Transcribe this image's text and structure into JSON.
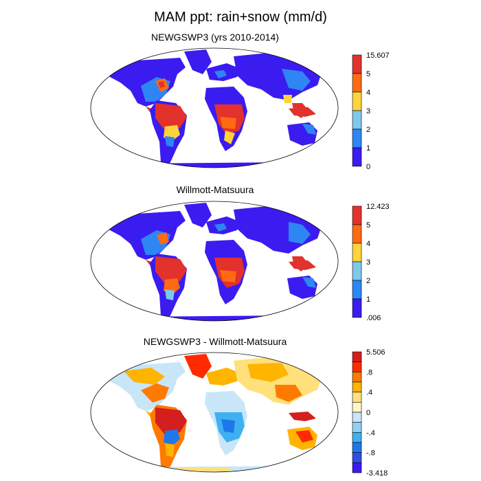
{
  "title": "MAM ppt: rain+snow (mm/d)",
  "panels": [
    {
      "title": "NEWGSWP3 (yrs 2010-2014)",
      "colorbar": {
        "labels": [
          "15.607",
          "5",
          "4",
          "3",
          "2",
          "1",
          "0"
        ],
        "colors": [
          "#e3312c",
          "#ff6a12",
          "#ffd43a",
          "#7ec8ec",
          "#2d86f3",
          "#3a1cf0"
        ]
      }
    },
    {
      "title": "Willmott-Matsuura",
      "colorbar": {
        "labels": [
          "12.423",
          "5",
          "4",
          "3",
          "2",
          "1",
          ".006"
        ],
        "colors": [
          "#e3312c",
          "#ff6a12",
          "#ffd43a",
          "#7ec8ec",
          "#2d86f3",
          "#3a1cf0"
        ]
      }
    },
    {
      "title": "NEWGSWP3 - Willmott-Matsuura",
      "colorbar": {
        "labels": [
          "5.506",
          ".8",
          ".4",
          "0",
          "-.4",
          "-.8",
          "-3.418"
        ],
        "colors": [
          "#d51e1e",
          "#ff2a00",
          "#ff7a00",
          "#ffb400",
          "#ffe07a",
          "#fff6c2",
          "#c8e6f8",
          "#8fd0f5",
          "#3fb0f0",
          "#1e78ec",
          "#2f4fe6",
          "#3a1cf0"
        ]
      }
    }
  ]
}
